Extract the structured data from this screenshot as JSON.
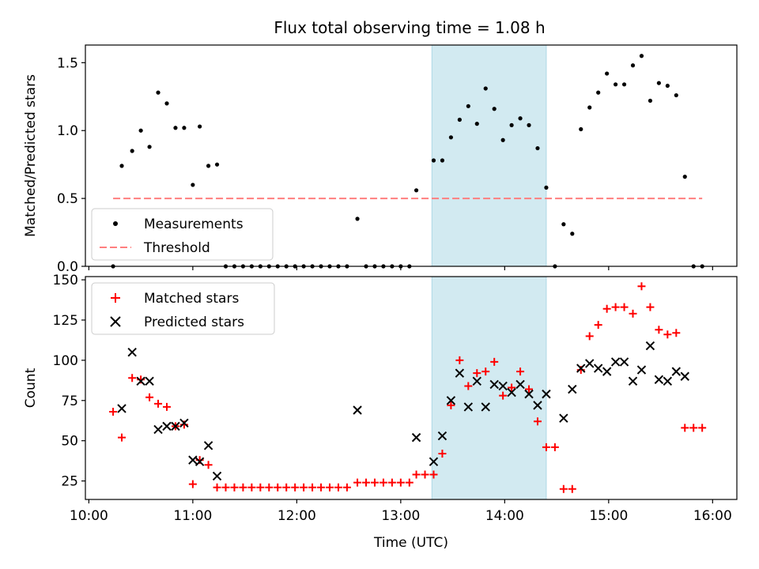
{
  "title": "Flux total observing time = 1.08 h",
  "highlight": {
    "start": "13:18",
    "end": "14:24",
    "color": "#add8e6"
  },
  "chart_data": [
    {
      "type": "scatter",
      "ylabel": "Matched/Predicted stars",
      "ylim": [
        0,
        1.63
      ],
      "yticks": [
        "0.0",
        "0.5",
        "1.0",
        "1.5"
      ],
      "xlim": [
        "09:58",
        "16:14"
      ],
      "grid": false,
      "legend_position": "lower-left",
      "series": [
        {
          "name": "Measurements",
          "color": "#000000",
          "marker": "dot",
          "points": [
            [
              "10:14",
              0.0
            ],
            [
              "10:19",
              0.74
            ],
            [
              "10:25",
              0.85
            ],
            [
              "10:30",
              1.0
            ],
            [
              "10:35",
              0.88
            ],
            [
              "10:40",
              1.28
            ],
            [
              "10:45",
              1.2
            ],
            [
              "10:50",
              1.02
            ],
            [
              "10:55",
              1.02
            ],
            [
              "11:00",
              0.6
            ],
            [
              "11:04",
              1.03
            ],
            [
              "11:09",
              0.74
            ],
            [
              "11:14",
              0.75
            ],
            [
              "11:19",
              0.0
            ],
            [
              "11:24",
              0.0
            ],
            [
              "11:29",
              0.0
            ],
            [
              "11:34",
              0.0
            ],
            [
              "11:39",
              0.0
            ],
            [
              "11:44",
              0.0
            ],
            [
              "11:49",
              0.0
            ],
            [
              "11:54",
              0.0
            ],
            [
              "11:59",
              0.0
            ],
            [
              "12:04",
              0.0
            ],
            [
              "12:09",
              0.0
            ],
            [
              "12:14",
              0.0
            ],
            [
              "12:19",
              0.0
            ],
            [
              "12:24",
              0.0
            ],
            [
              "12:29",
              0.0
            ],
            [
              "12:35",
              0.35
            ],
            [
              "12:40",
              0.0
            ],
            [
              "12:45",
              0.0
            ],
            [
              "12:50",
              0.0
            ],
            [
              "12:55",
              0.0
            ],
            [
              "13:00",
              0.0
            ],
            [
              "13:05",
              0.0
            ],
            [
              "13:09",
              0.56
            ],
            [
              "13:19",
              0.78
            ],
            [
              "13:24",
              0.78
            ],
            [
              "13:29",
              0.95
            ],
            [
              "13:34",
              1.08
            ],
            [
              "13:39",
              1.18
            ],
            [
              "13:44",
              1.05
            ],
            [
              "13:49",
              1.31
            ],
            [
              "13:54",
              1.16
            ],
            [
              "13:59",
              0.93
            ],
            [
              "14:04",
              1.04
            ],
            [
              "14:09",
              1.09
            ],
            [
              "14:14",
              1.04
            ],
            [
              "14:19",
              0.87
            ],
            [
              "14:24",
              0.58
            ],
            [
              "14:29",
              0.0
            ],
            [
              "14:34",
              0.31
            ],
            [
              "14:39",
              0.24
            ],
            [
              "14:44",
              1.01
            ],
            [
              "14:49",
              1.17
            ],
            [
              "14:54",
              1.28
            ],
            [
              "14:59",
              1.42
            ],
            [
              "15:04",
              1.34
            ],
            [
              "15:09",
              1.34
            ],
            [
              "15:14",
              1.48
            ],
            [
              "15:19",
              1.55
            ],
            [
              "15:24",
              1.22
            ],
            [
              "15:29",
              1.35
            ],
            [
              "15:34",
              1.33
            ],
            [
              "15:39",
              1.26
            ],
            [
              "15:44",
              0.66
            ],
            [
              "15:49",
              0.0
            ],
            [
              "15:54",
              0.0
            ]
          ]
        },
        {
          "name": "Threshold",
          "color": "#ff7f7f",
          "style": "dashed",
          "points": [
            [
              "10:14",
              0.5
            ],
            [
              "15:54",
              0.5
            ]
          ]
        }
      ]
    },
    {
      "type": "scatter",
      "xlabel": "Time (UTC)",
      "ylabel": "Count",
      "ylim": [
        13.5,
        152
      ],
      "yticks": [
        "25",
        "50",
        "75",
        "100",
        "125",
        "150"
      ],
      "xlim": [
        "09:58",
        "16:14"
      ],
      "xticks": [
        "10:00",
        "11:00",
        "12:00",
        "13:00",
        "14:00",
        "15:00",
        "16:00"
      ],
      "grid": false,
      "legend_position": "upper-left",
      "series": [
        {
          "name": "Matched stars",
          "color": "#ff0000",
          "marker": "plus",
          "points": [
            [
              "10:14",
              68
            ],
            [
              "10:19",
              52
            ],
            [
              "10:25",
              89
            ],
            [
              "10:30",
              88
            ],
            [
              "10:35",
              77
            ],
            [
              "10:40",
              73
            ],
            [
              "10:45",
              71
            ],
            [
              "10:50",
              59
            ],
            [
              "10:55",
              60
            ],
            [
              "11:00",
              23
            ],
            [
              "11:04",
              38
            ],
            [
              "11:09",
              35
            ],
            [
              "11:14",
              21
            ],
            [
              "11:19",
              21
            ],
            [
              "11:24",
              21
            ],
            [
              "11:29",
              21
            ],
            [
              "11:34",
              21
            ],
            [
              "11:39",
              21
            ],
            [
              "11:44",
              21
            ],
            [
              "11:49",
              21
            ],
            [
              "11:54",
              21
            ],
            [
              "11:59",
              21
            ],
            [
              "12:04",
              21
            ],
            [
              "12:09",
              21
            ],
            [
              "12:14",
              21
            ],
            [
              "12:19",
              21
            ],
            [
              "12:24",
              21
            ],
            [
              "12:29",
              21
            ],
            [
              "12:35",
              24
            ],
            [
              "12:40",
              24
            ],
            [
              "12:45",
              24
            ],
            [
              "12:50",
              24
            ],
            [
              "12:55",
              24
            ],
            [
              "13:00",
              24
            ],
            [
              "13:05",
              24
            ],
            [
              "13:09",
              29
            ],
            [
              "13:14",
              29
            ],
            [
              "13:19",
              29
            ],
            [
              "13:24",
              42
            ],
            [
              "13:29",
              72
            ],
            [
              "13:34",
              100
            ],
            [
              "13:39",
              84
            ],
            [
              "13:44",
              92
            ],
            [
              "13:49",
              93
            ],
            [
              "13:54",
              99
            ],
            [
              "13:59",
              78
            ],
            [
              "14:04",
              83
            ],
            [
              "14:09",
              93
            ],
            [
              "14:14",
              82
            ],
            [
              "14:19",
              62
            ],
            [
              "14:24",
              46
            ],
            [
              "14:29",
              46
            ],
            [
              "14:34",
              20
            ],
            [
              "14:39",
              20
            ],
            [
              "14:44",
              94
            ],
            [
              "14:49",
              115
            ],
            [
              "14:54",
              122
            ],
            [
              "14:59",
              132
            ],
            [
              "15:04",
              133
            ],
            [
              "15:09",
              133
            ],
            [
              "15:14",
              129
            ],
            [
              "15:19",
              146
            ],
            [
              "15:24",
              133
            ],
            [
              "15:29",
              119
            ],
            [
              "15:34",
              116
            ],
            [
              "15:39",
              117
            ],
            [
              "15:44",
              58
            ],
            [
              "15:49",
              58
            ],
            [
              "15:54",
              58
            ]
          ]
        },
        {
          "name": "Predicted stars",
          "color": "#000000",
          "marker": "x",
          "points": [
            [
              "10:19",
              70
            ],
            [
              "10:25",
              105
            ],
            [
              "10:30",
              87
            ],
            [
              "10:35",
              87
            ],
            [
              "10:40",
              57
            ],
            [
              "10:45",
              59
            ],
            [
              "10:50",
              59
            ],
            [
              "10:55",
              61
            ],
            [
              "11:00",
              38
            ],
            [
              "11:04",
              37
            ],
            [
              "11:09",
              47
            ],
            [
              "11:14",
              28
            ],
            [
              "12:35",
              69
            ],
            [
              "13:09",
              52
            ],
            [
              "13:19",
              37
            ],
            [
              "13:24",
              53
            ],
            [
              "13:29",
              75
            ],
            [
              "13:34",
              92
            ],
            [
              "13:39",
              71
            ],
            [
              "13:44",
              87
            ],
            [
              "13:49",
              71
            ],
            [
              "13:54",
              85
            ],
            [
              "13:59",
              84
            ],
            [
              "14:04",
              80
            ],
            [
              "14:09",
              85
            ],
            [
              "14:14",
              79
            ],
            [
              "14:19",
              72
            ],
            [
              "14:24",
              79
            ],
            [
              "14:34",
              64
            ],
            [
              "14:39",
              82
            ],
            [
              "14:44",
              95
            ],
            [
              "14:49",
              98
            ],
            [
              "14:54",
              95
            ],
            [
              "14:59",
              93
            ],
            [
              "15:04",
              99
            ],
            [
              "15:09",
              99
            ],
            [
              "15:14",
              87
            ],
            [
              "15:19",
              94
            ],
            [
              "15:24",
              109
            ],
            [
              "15:29",
              88
            ],
            [
              "15:34",
              87
            ],
            [
              "15:39",
              93
            ],
            [
              "15:44",
              90
            ]
          ]
        }
      ]
    }
  ]
}
